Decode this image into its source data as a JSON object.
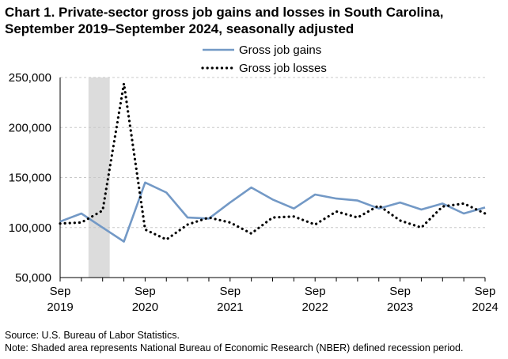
{
  "title_line1": "Chart 1. Private-sector gross job gains and losses in South Carolina,",
  "title_line2": "September 2019–September 2024, seasonally adjusted",
  "source": "Source: U.S. Bureau of Labor Statistics.",
  "note": "Note: Shaded area represents National Bureau of Economic Research (NBER) defined recession period.",
  "chart_data": {
    "type": "line",
    "title": "Chart 1. Private-sector gross job gains and losses in South Carolina, September 2019–September 2024, seasonally adjusted",
    "xlabel": "",
    "ylabel": "",
    "ylim": [
      50000,
      250000
    ],
    "y_ticks": [
      "50,000",
      "100,000",
      "150,000",
      "200,000",
      "250,000"
    ],
    "y_tick_values": [
      50000,
      100000,
      150000,
      200000,
      250000
    ],
    "x_ticks": [
      {
        "month": "Sep",
        "year": "2019"
      },
      {
        "month": "Sep",
        "year": "2020"
      },
      {
        "month": "Sep",
        "year": "2021"
      },
      {
        "month": "Sep",
        "year": "2022"
      },
      {
        "month": "Sep",
        "year": "2023"
      },
      {
        "month": "Sep",
        "year": "2024"
      }
    ],
    "x": [
      "Sep 2019",
      "Dec 2019",
      "Mar 2020",
      "Jun 2020",
      "Sep 2020",
      "Dec 2020",
      "Mar 2021",
      "Jun 2021",
      "Sep 2021",
      "Dec 2021",
      "Mar 2022",
      "Jun 2022",
      "Sep 2022",
      "Dec 2022",
      "Mar 2023",
      "Jun 2023",
      "Sep 2023",
      "Dec 2023",
      "Mar 2024",
      "Jun 2024",
      "Sep 2024"
    ],
    "grid": "horizontal",
    "legend_placement": "top",
    "recession_shading": {
      "start": "Jan 2020",
      "end": "Apr 2020",
      "color": "#dcdcdc"
    },
    "series": [
      {
        "name": "Gross job gains",
        "style": "solid",
        "color": "#7399c6",
        "values": [
          106000,
          114000,
          100000,
          86000,
          145000,
          135000,
          110000,
          109000,
          125000,
          140000,
          128000,
          119000,
          133000,
          129000,
          127000,
          119000,
          125000,
          118000,
          124000,
          114000,
          120000
        ]
      },
      {
        "name": "Gross job losses",
        "style": "dotted",
        "color": "#000000",
        "values": [
          104000,
          105000,
          117000,
          244000,
          98000,
          88000,
          103000,
          110000,
          105000,
          94000,
          110000,
          111000,
          103000,
          116000,
          110000,
          122000,
          107000,
          100000,
          121000,
          124000,
          114000
        ]
      }
    ]
  }
}
